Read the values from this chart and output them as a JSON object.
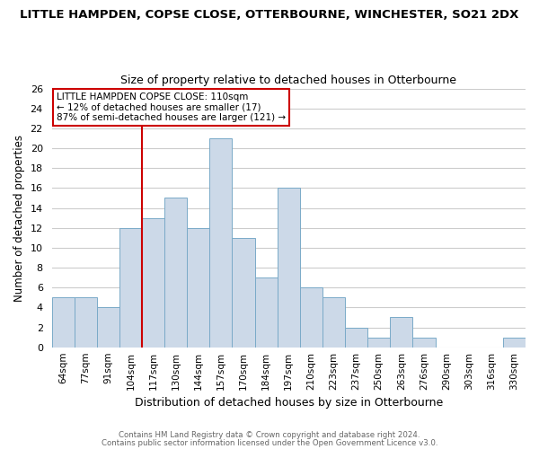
{
  "title": "LITTLE HAMPDEN, COPSE CLOSE, OTTERBOURNE, WINCHESTER, SO21 2DX",
  "subtitle": "Size of property relative to detached houses in Otterbourne",
  "xlabel": "Distribution of detached houses by size in Otterbourne",
  "ylabel": "Number of detached properties",
  "footer_line1": "Contains HM Land Registry data © Crown copyright and database right 2024.",
  "footer_line2": "Contains public sector information licensed under the Open Government Licence v3.0.",
  "bar_labels": [
    "64sqm",
    "77sqm",
    "91sqm",
    "104sqm",
    "117sqm",
    "130sqm",
    "144sqm",
    "157sqm",
    "170sqm",
    "184sqm",
    "197sqm",
    "210sqm",
    "223sqm",
    "237sqm",
    "250sqm",
    "263sqm",
    "276sqm",
    "290sqm",
    "303sqm",
    "316sqm",
    "330sqm"
  ],
  "bar_values": [
    5,
    5,
    4,
    12,
    13,
    15,
    12,
    21,
    11,
    7,
    16,
    6,
    5,
    2,
    1,
    3,
    1,
    0,
    0,
    0,
    1
  ],
  "bar_color": "#ccd9e8",
  "bar_edge_color": "#7aaac8",
  "ylim": [
    0,
    26
  ],
  "yticks": [
    0,
    2,
    4,
    6,
    8,
    10,
    12,
    14,
    16,
    18,
    20,
    22,
    24,
    26
  ],
  "vline_x": 3.5,
  "vline_color": "#cc0000",
  "annotation_title": "LITTLE HAMPDEN COPSE CLOSE: 110sqm",
  "annotation_line1": "← 12% of detached houses are smaller (17)",
  "annotation_line2": "87% of semi-detached houses are larger (121) →",
  "annotation_box_color": "#ffffff",
  "annotation_box_edge": "#cc0000",
  "background_color": "#ffffff",
  "grid_color": "#cccccc"
}
